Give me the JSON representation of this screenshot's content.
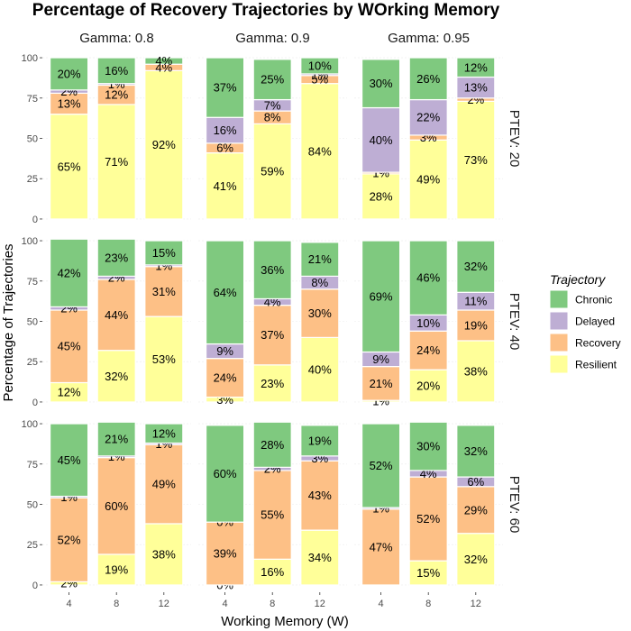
{
  "chart_data": {
    "type": "bar",
    "stacked": true,
    "title": "Percentage of Recovery Trajectories by WOrking Memory",
    "xlabel": "Working Memory (W)",
    "ylabel": "Percentage of Trajectories",
    "ylim": [
      0,
      100
    ],
    "yticks": [
      "0",
      "25",
      "50",
      "75",
      "100"
    ],
    "categories": [
      "4",
      "8",
      "12"
    ],
    "column_facets": [
      "Gamma: 0.8",
      "Gamma: 0.9",
      "Gamma: 0.95"
    ],
    "row_facets": [
      "PTEV: 20",
      "PTEV: 40",
      "PTEV: 60"
    ],
    "grid": true,
    "legend": {
      "title": "Trajectory",
      "position": "right",
      "entries": [
        "Chronic",
        "Delayed",
        "Recovery",
        "Resilient"
      ]
    },
    "stack_order_bottom_to_top": [
      "Resilient",
      "Recovery",
      "Delayed",
      "Chronic"
    ],
    "colors": {
      "Chronic": "#7fc97f",
      "Delayed": "#beaed4",
      "Recovery": "#fdc086",
      "Resilient": "#ffff99"
    },
    "panels": [
      [
        {
          "bars": [
            {
              "Resilient": 65,
              "Recovery": 13,
              "Delayed": 2,
              "Chronic": 20
            },
            {
              "Resilient": 71,
              "Recovery": 12,
              "Delayed": 1,
              "Chronic": 16
            },
            {
              "Resilient": 92,
              "Recovery": 4,
              "Delayed": 0,
              "Chronic": 4
            }
          ]
        },
        {
          "bars": [
            {
              "Resilient": 41,
              "Recovery": 6,
              "Delayed": 16,
              "Chronic": 37
            },
            {
              "Resilient": 59,
              "Recovery": 8,
              "Delayed": 7,
              "Chronic": 25
            },
            {
              "Resilient": 84,
              "Recovery": 5,
              "Delayed": 1,
              "Chronic": 10
            }
          ]
        },
        {
          "bars": [
            {
              "Resilient": 28,
              "Recovery": 1,
              "Delayed": 40,
              "Chronic": 30
            },
            {
              "Resilient": 49,
              "Recovery": 3,
              "Delayed": 22,
              "Chronic": 26
            },
            {
              "Resilient": 73,
              "Recovery": 2,
              "Delayed": 13,
              "Chronic": 12
            }
          ]
        }
      ],
      [
        {
          "bars": [
            {
              "Resilient": 12,
              "Recovery": 45,
              "Delayed": 2,
              "Chronic": 42
            },
            {
              "Resilient": 32,
              "Recovery": 44,
              "Delayed": 2,
              "Chronic": 23
            },
            {
              "Resilient": 53,
              "Recovery": 31,
              "Delayed": 1,
              "Chronic": 15
            }
          ]
        },
        {
          "bars": [
            {
              "Resilient": 3,
              "Recovery": 24,
              "Delayed": 9,
              "Chronic": 64
            },
            {
              "Resilient": 23,
              "Recovery": 37,
              "Delayed": 4,
              "Chronic": 36
            },
            {
              "Resilient": 40,
              "Recovery": 30,
              "Delayed": 8,
              "Chronic": 21
            }
          ]
        },
        {
          "bars": [
            {
              "Resilient": 1,
              "Recovery": 21,
              "Delayed": 9,
              "Chronic": 69
            },
            {
              "Resilient": 20,
              "Recovery": 24,
              "Delayed": 10,
              "Chronic": 46
            },
            {
              "Resilient": 38,
              "Recovery": 19,
              "Delayed": 11,
              "Chronic": 32
            }
          ]
        }
      ],
      [
        {
          "bars": [
            {
              "Resilient": 2,
              "Recovery": 52,
              "Delayed": 1,
              "Chronic": 45
            },
            {
              "Resilient": 19,
              "Recovery": 60,
              "Delayed": 1,
              "Chronic": 21
            },
            {
              "Resilient": 38,
              "Recovery": 49,
              "Delayed": 1,
              "Chronic": 12
            }
          ]
        },
        {
          "bars": [
            {
              "Resilient": 0,
              "Recovery": 39,
              "Delayed": 0,
              "Chronic": 60
            },
            {
              "Resilient": 16,
              "Recovery": 55,
              "Delayed": 2,
              "Chronic": 28
            },
            {
              "Resilient": 34,
              "Recovery": 43,
              "Delayed": 3,
              "Chronic": 19
            }
          ]
        },
        {
          "bars": [
            {
              "Resilient": 0,
              "Recovery": 47,
              "Delayed": 1,
              "Chronic": 52
            },
            {
              "Resilient": 15,
              "Recovery": 52,
              "Delayed": 4,
              "Chronic": 30
            },
            {
              "Resilient": 32,
              "Recovery": 29,
              "Delayed": 6,
              "Chronic": 32
            }
          ]
        }
      ]
    ],
    "labels": [
      [
        [
          {
            "Resilient": "65%",
            "Recovery": "13%",
            "Delayed": "2%",
            "Chronic": "20%"
          },
          {
            "Resilient": "71%",
            "Recovery": "12%",
            "Delayed": "1%",
            "Chronic": "16%"
          },
          {
            "Resilient": "92%",
            "Recovery": "4%",
            "Chronic": "4%"
          }
        ],
        [
          {
            "Resilient": "41%",
            "Recovery": "6%",
            "Delayed": "16%",
            "Chronic": "37%"
          },
          {
            "Resilient": "59%",
            "Recovery": "8%",
            "Delayed": "7%",
            "Chronic": "25%"
          },
          {
            "Resilient": "84%",
            "Recovery": "5%",
            "Delayed": "1%",
            "Chronic": "10%"
          }
        ],
        [
          {
            "Resilient": "28%",
            "Recovery": "1%",
            "Delayed": "40%",
            "Chronic": "30%"
          },
          {
            "Resilient": "49%",
            "Recovery": "3%",
            "Delayed": "22%",
            "Chronic": "26%"
          },
          {
            "Resilient": "73%",
            "Recovery": "2%",
            "Delayed": "13%",
            "Chronic": "12%"
          }
        ]
      ],
      [
        [
          {
            "Resilient": "12%",
            "Recovery": "45%",
            "Delayed": "2%",
            "Chronic": "42%"
          },
          {
            "Resilient": "32%",
            "Recovery": "44%",
            "Delayed": "2%",
            "Chronic": "23%"
          },
          {
            "Resilient": "53%",
            "Recovery": "31%",
            "Delayed": "1%",
            "Chronic": "15%"
          }
        ],
        [
          {
            "Resilient": "3%",
            "Recovery": "24%",
            "Delayed": "9%",
            "Chronic": "64%"
          },
          {
            "Resilient": "23%",
            "Recovery": "37%",
            "Delayed": "4%",
            "Chronic": "36%"
          },
          {
            "Resilient": "40%",
            "Recovery": "30%",
            "Delayed": "8%",
            "Chronic": "21%"
          }
        ],
        [
          {
            "Resilient": "1%",
            "Recovery": "21%",
            "Delayed": "9%",
            "Chronic": "69%"
          },
          {
            "Resilient": "20%",
            "Recovery": "24%",
            "Delayed": "10%",
            "Chronic": "46%"
          },
          {
            "Resilient": "38%",
            "Recovery": "19%",
            "Delayed": "11%",
            "Chronic": "32%"
          }
        ]
      ],
      [
        [
          {
            "Resilient": "2%",
            "Recovery": "52%",
            "Delayed": "1%",
            "Chronic": "45%"
          },
          {
            "Resilient": "19%",
            "Recovery": "60%",
            "Delayed": "1%",
            "Chronic": "21%"
          },
          {
            "Resilient": "38%",
            "Recovery": "49%",
            "Delayed": "1%",
            "Chronic": "12%"
          }
        ],
        [
          {
            "Resilient": "0%",
            "Recovery": "39%",
            "Delayed": "0%",
            "Chronic": "60%"
          },
          {
            "Resilient": "16%",
            "Recovery": "55%",
            "Delayed": "2%",
            "Chronic": "28%"
          },
          {
            "Resilient": "34%",
            "Recovery": "43%",
            "Delayed": "3%",
            "Chronic": "19%"
          }
        ],
        [
          {
            "Recovery": "47%",
            "Delayed": "1%",
            "Chronic": "52%"
          },
          {
            "Resilient": "15%",
            "Recovery": "52%",
            "Delayed": "4%",
            "Chronic": "30%"
          },
          {
            "Resilient": "32%",
            "Recovery": "29%",
            "Delayed": "6%",
            "Chronic": "32%"
          }
        ]
      ]
    ]
  }
}
